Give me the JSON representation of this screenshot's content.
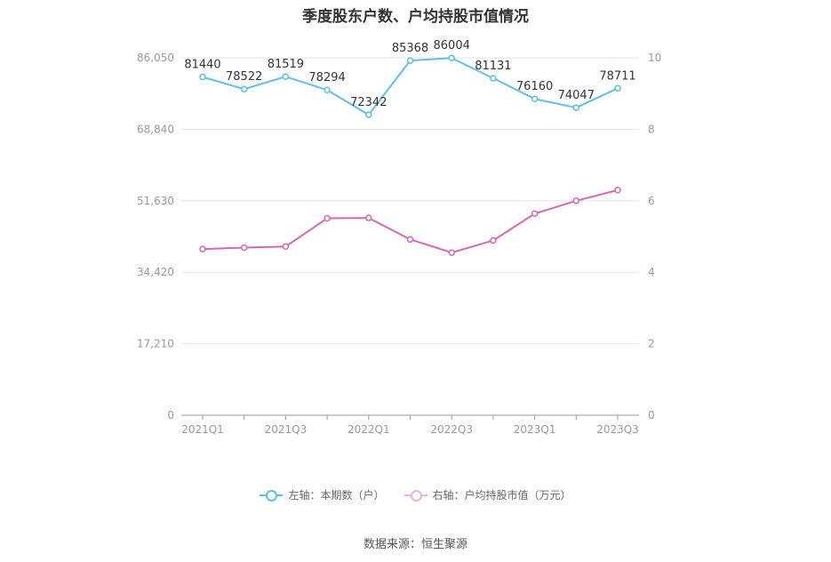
{
  "chart_data": {
    "type": "line",
    "title": "季度股东户数、户均持股市值情况",
    "categories": [
      "2021Q1",
      "2021Q2",
      "2021Q3",
      "2021Q4",
      "2022Q1",
      "2022Q2",
      "2022Q3",
      "2022Q4",
      "2023Q1",
      "2023Q2",
      "2023Q3"
    ],
    "x_tick_labels": [
      "2021Q1",
      "",
      "2021Q3",
      "",
      "2022Q1",
      "",
      "2022Q3",
      "",
      "2023Q1",
      "",
      "2023Q3"
    ],
    "left_axis": {
      "min": 0,
      "max": 86050,
      "ticks": [
        "0",
        "17,210",
        "34,420",
        "51,630",
        "68,840",
        "86,050"
      ]
    },
    "right_axis": {
      "min": 0,
      "max": 10,
      "ticks": [
        "0",
        "2",
        "4",
        "6",
        "8",
        "10"
      ]
    },
    "grid": true,
    "legend_position": "bottom",
    "series": [
      {
        "name": "左轴：本期数（户）",
        "axis": "left",
        "color": "#5bc0eb",
        "values": [
          81440,
          78522,
          81519,
          78294,
          72342,
          85368,
          86004,
          81131,
          76160,
          74047,
          78711
        ],
        "labels": [
          "81440",
          "78522",
          "81519",
          "78294",
          "72342",
          "85368",
          "86004",
          "81131",
          "76160",
          "74047",
          "78711"
        ]
      },
      {
        "name": "右轴：户均持股市值（万元）",
        "axis": "right",
        "color": "#d966b0",
        "values": [
          4.65,
          4.69,
          4.72,
          5.51,
          5.52,
          4.92,
          4.55,
          4.89,
          5.64,
          6.0,
          6.3
        ]
      }
    ]
  },
  "source": "数据来源：恒生聚源"
}
